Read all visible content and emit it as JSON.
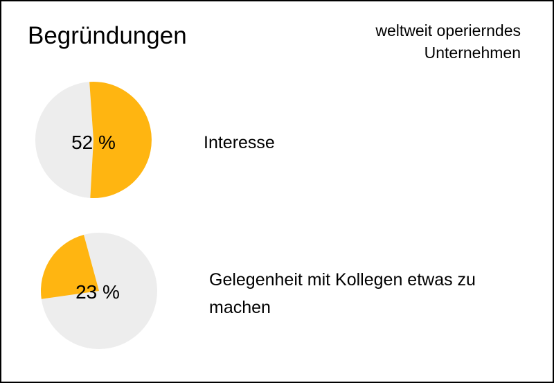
{
  "header": {
    "title": "Begründungen",
    "subtitle_line1": "weltweit operierndes",
    "subtitle_line2": "Unternehmen"
  },
  "colors": {
    "highlight": "#FFB511",
    "remainder": "#EDEDED"
  },
  "chart_data": [
    {
      "type": "pie",
      "values": [
        52,
        48
      ],
      "data_label": "52 %",
      "category": "Interesse"
    },
    {
      "type": "pie",
      "values": [
        23,
        77
      ],
      "data_label": "23 %",
      "category": "Gelegenheit mit Kollegen etwas zu machen"
    }
  ]
}
